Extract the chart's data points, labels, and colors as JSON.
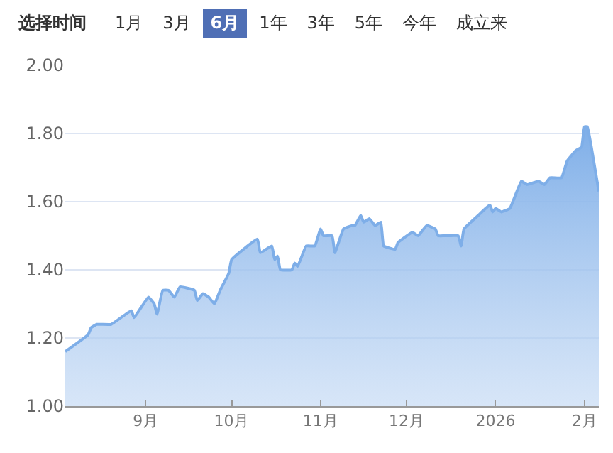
{
  "chart_data": {
    "type": "area",
    "annotations": [
      "选择时间",
      "1月",
      "3月",
      "6月",
      "1年",
      "3年",
      "5年",
      "今年",
      "成立来"
    ],
    "x": [
      "2025-08-04",
      "2025-08-12",
      "2025-08-13",
      "2025-08-15",
      "2025-08-20",
      "2025-08-27",
      "2025-08-28",
      "2025-09-02",
      "2025-09-04",
      "2025-09-05",
      "2025-09-07",
      "2025-09-09",
      "2025-09-11",
      "2025-09-13",
      "2025-09-18",
      "2025-09-19",
      "2025-09-21",
      "2025-09-23",
      "2025-09-25",
      "2025-09-27",
      "2025-09-30",
      "2025-10-01",
      "2025-10-10",
      "2025-10-11",
      "2025-10-15",
      "2025-10-16",
      "2025-10-17",
      "2025-10-18",
      "2025-10-22",
      "2025-10-23",
      "2025-10-24",
      "2025-10-27",
      "2025-10-30",
      "2025-11-01",
      "2025-11-02",
      "2025-11-05",
      "2025-11-06",
      "2025-11-09",
      "2025-11-12",
      "2025-11-13",
      "2025-11-15",
      "2025-11-16",
      "2025-11-18",
      "2025-11-20",
      "2025-11-22",
      "2025-11-23",
      "2025-11-27",
      "2025-11-28",
      "2025-12-03",
      "2025-12-05",
      "2025-12-08",
      "2025-12-11",
      "2025-12-12",
      "2025-12-14",
      "2025-12-16",
      "2025-12-19",
      "2025-12-20",
      "2025-12-21",
      "2025-12-26",
      "2025-12-30",
      "2025-12-31",
      "2026-01-01",
      "2026-01-03",
      "2026-01-06",
      "2026-01-10",
      "2026-01-12",
      "2026-01-16",
      "2026-01-18",
      "2026-01-20",
      "2026-01-24",
      "2026-01-26",
      "2026-01-29",
      "2026-01-31",
      "2026-02-01",
      "2026-02-02",
      "2026-02-04",
      "2026-02-06"
    ],
    "series": [
      {
        "color": "#7eaee8",
        "values": [
          1.16,
          1.21,
          1.23,
          1.24,
          1.24,
          1.28,
          1.26,
          1.32,
          1.3,
          1.27,
          1.34,
          1.34,
          1.32,
          1.35,
          1.34,
          1.31,
          1.33,
          1.32,
          1.3,
          1.34,
          1.39,
          1.43,
          1.49,
          1.45,
          1.47,
          1.43,
          1.44,
          1.4,
          1.4,
          1.42,
          1.41,
          1.47,
          1.47,
          1.52,
          1.5,
          1.5,
          1.45,
          1.52,
          1.53,
          1.53,
          1.56,
          1.54,
          1.55,
          1.53,
          1.54,
          1.47,
          1.46,
          1.48,
          1.51,
          1.5,
          1.53,
          1.52,
          1.5,
          1.5,
          1.5,
          1.5,
          1.47,
          1.52,
          1.56,
          1.59,
          1.57,
          1.58,
          1.57,
          1.58,
          1.66,
          1.65,
          1.66,
          1.65,
          1.67,
          1.67,
          1.72,
          1.75,
          1.76,
          1.82,
          1.82,
          1.73,
          1.63
        ]
      }
    ],
    "xlim": [
      "2025-08-04",
      "2026-02-06"
    ],
    "xticks": [
      {
        "value": "2025-09-01",
        "label": "9月"
      },
      {
        "value": "2025-10-01",
        "label": "10月"
      },
      {
        "value": "2025-11-01",
        "label": "11月"
      },
      {
        "value": "2025-12-01",
        "label": "12月"
      },
      {
        "value": "2026-01-01",
        "label": "2026"
      },
      {
        "value": "2026-02-01",
        "label": "2月"
      }
    ],
    "ylim": [
      1,
      2
    ],
    "yticks": [
      {
        "value": 1,
        "label": "1.00"
      },
      {
        "value": 1.2,
        "label": "1.20"
      },
      {
        "value": 1.4,
        "label": "1.40"
      },
      {
        "value": 1.6,
        "label": "1.60"
      },
      {
        "value": 1.8,
        "label": "1.80"
      },
      {
        "value": 2,
        "label": "2.00"
      }
    ],
    "grid": "y",
    "marker": "none",
    "line_style": "solid"
  }
}
